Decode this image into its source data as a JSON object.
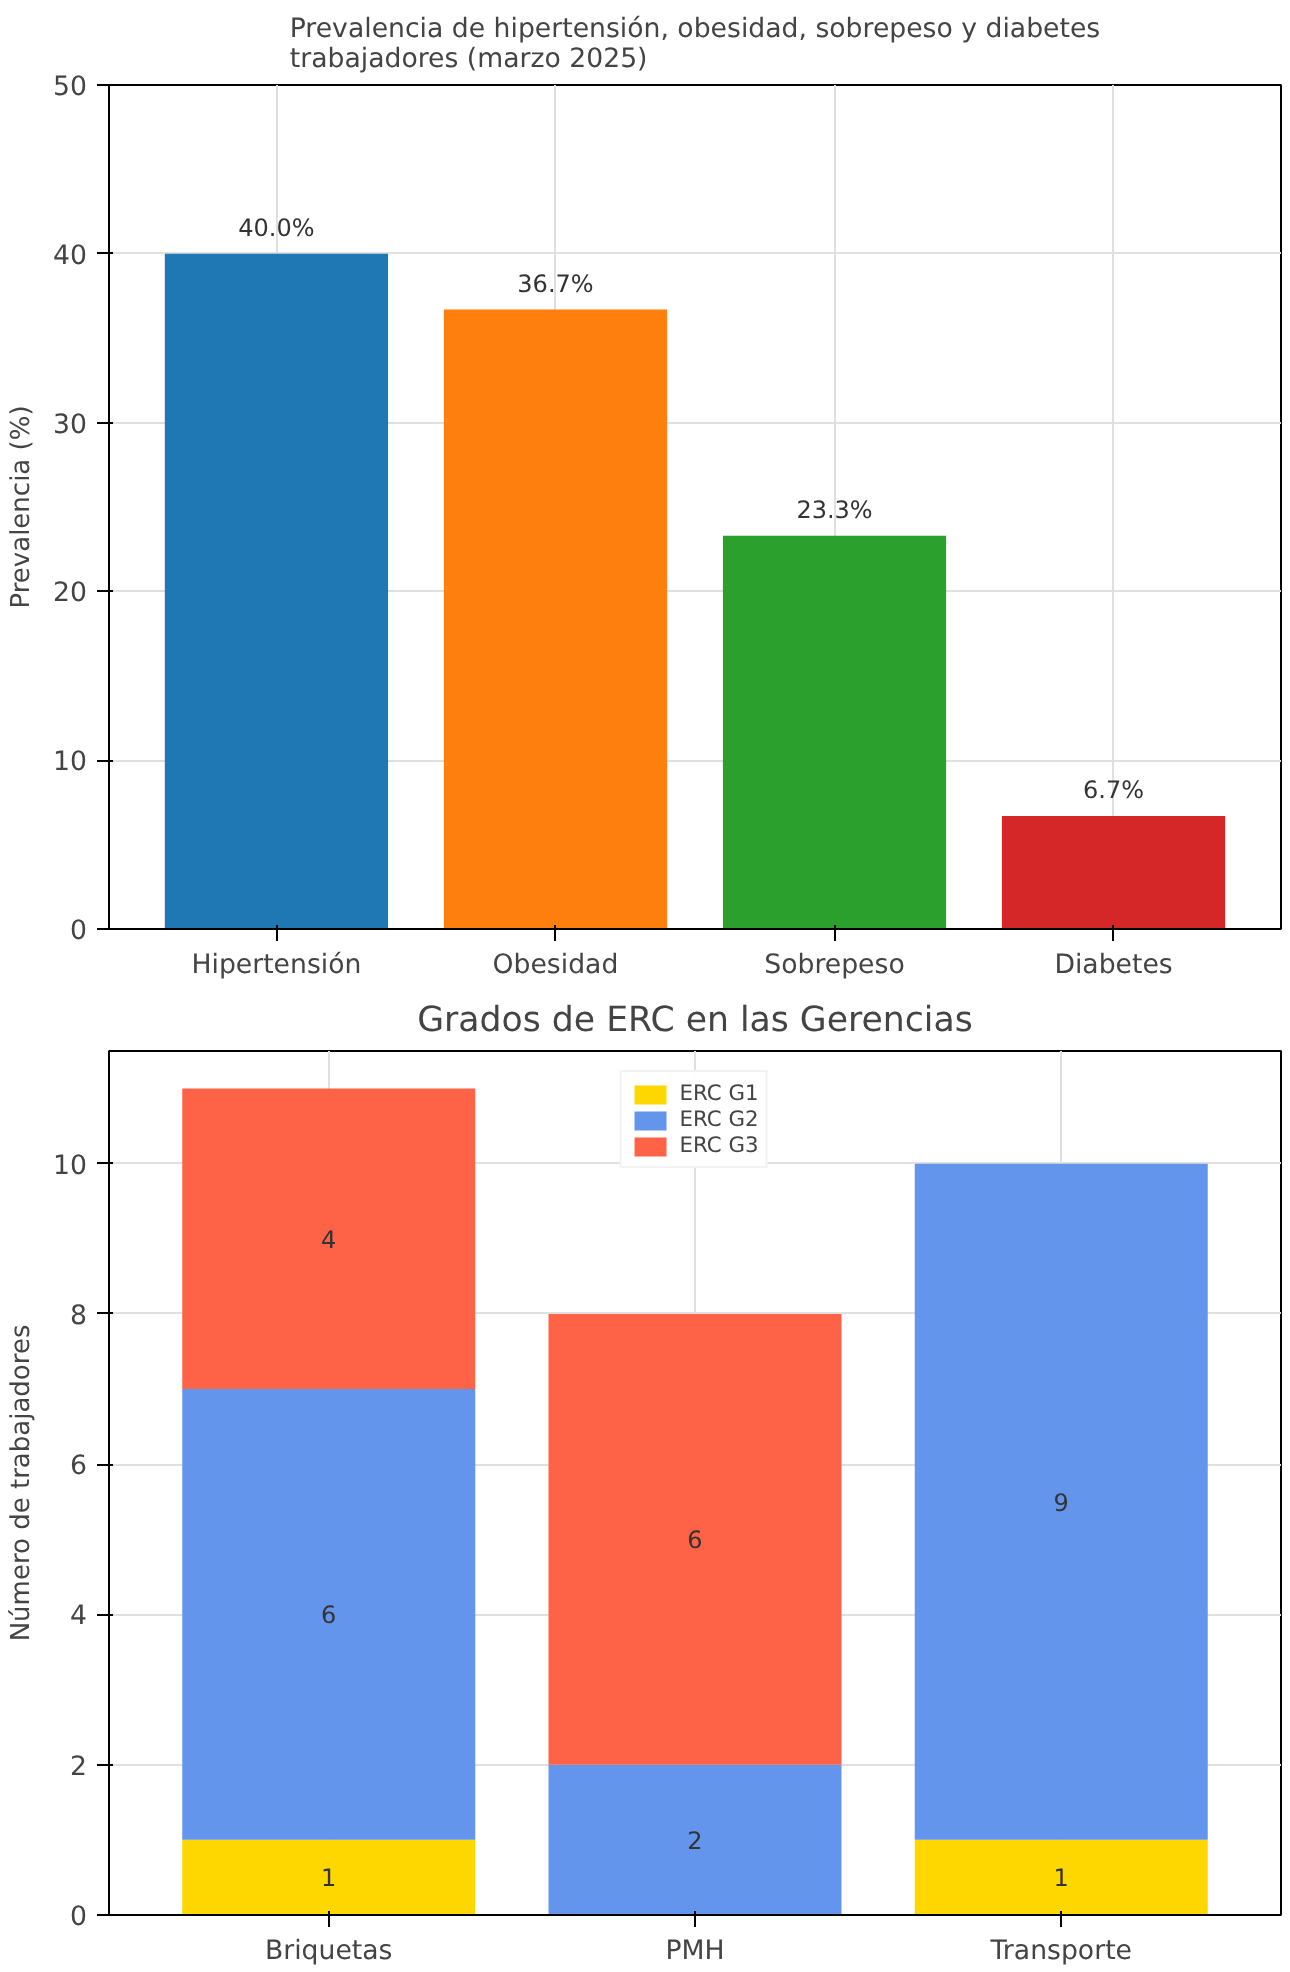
{
  "chart_data": [
    {
      "type": "bar",
      "title": "Prevalencia de hipertensión, obesidad, sobrepeso y diabetes\ntrabajadores (marzo 2025)",
      "ylabel": "Prevalencia (%)",
      "categories": [
        "Hipertensión",
        "Obesidad",
        "Sobrepeso",
        "Diabetes"
      ],
      "values": [
        40.0,
        36.7,
        23.3,
        6.7
      ],
      "colors": [
        "#1f77b4",
        "#ff7f0e",
        "#2ca02c",
        "#d62728"
      ],
      "value_labels": [
        "40.0%",
        "36.7%",
        "23.3%",
        "6.7%"
      ],
      "ylim": [
        0,
        50
      ],
      "yticks": [
        0,
        10,
        20,
        30,
        40,
        50
      ],
      "grid": true
    },
    {
      "type": "bar",
      "title": "Grados de ERC en las Gerencias",
      "ylabel": "Número de trabajadores",
      "categories": [
        "Briquetas",
        "PMH",
        "Transporte"
      ],
      "stacked": true,
      "series": [
        {
          "name": "ERC G1",
          "color": "#ffd700",
          "values": [
            1,
            0,
            1
          ],
          "value_labels": [
            "1",
            null,
            "1"
          ]
        },
        {
          "name": "ERC G2",
          "color": "#6495ed",
          "values": [
            6,
            2,
            9
          ],
          "value_labels": [
            "6",
            "2",
            "9"
          ]
        },
        {
          "name": "ERC G3",
          "color": "#ff6347",
          "values": [
            4,
            6,
            0
          ],
          "value_labels": [
            "4",
            "6",
            null
          ]
        }
      ],
      "ylim": [
        0,
        11.5
      ],
      "yticks": [
        0,
        2,
        4,
        6,
        8,
        10
      ],
      "grid": true,
      "legend": "top"
    }
  ]
}
